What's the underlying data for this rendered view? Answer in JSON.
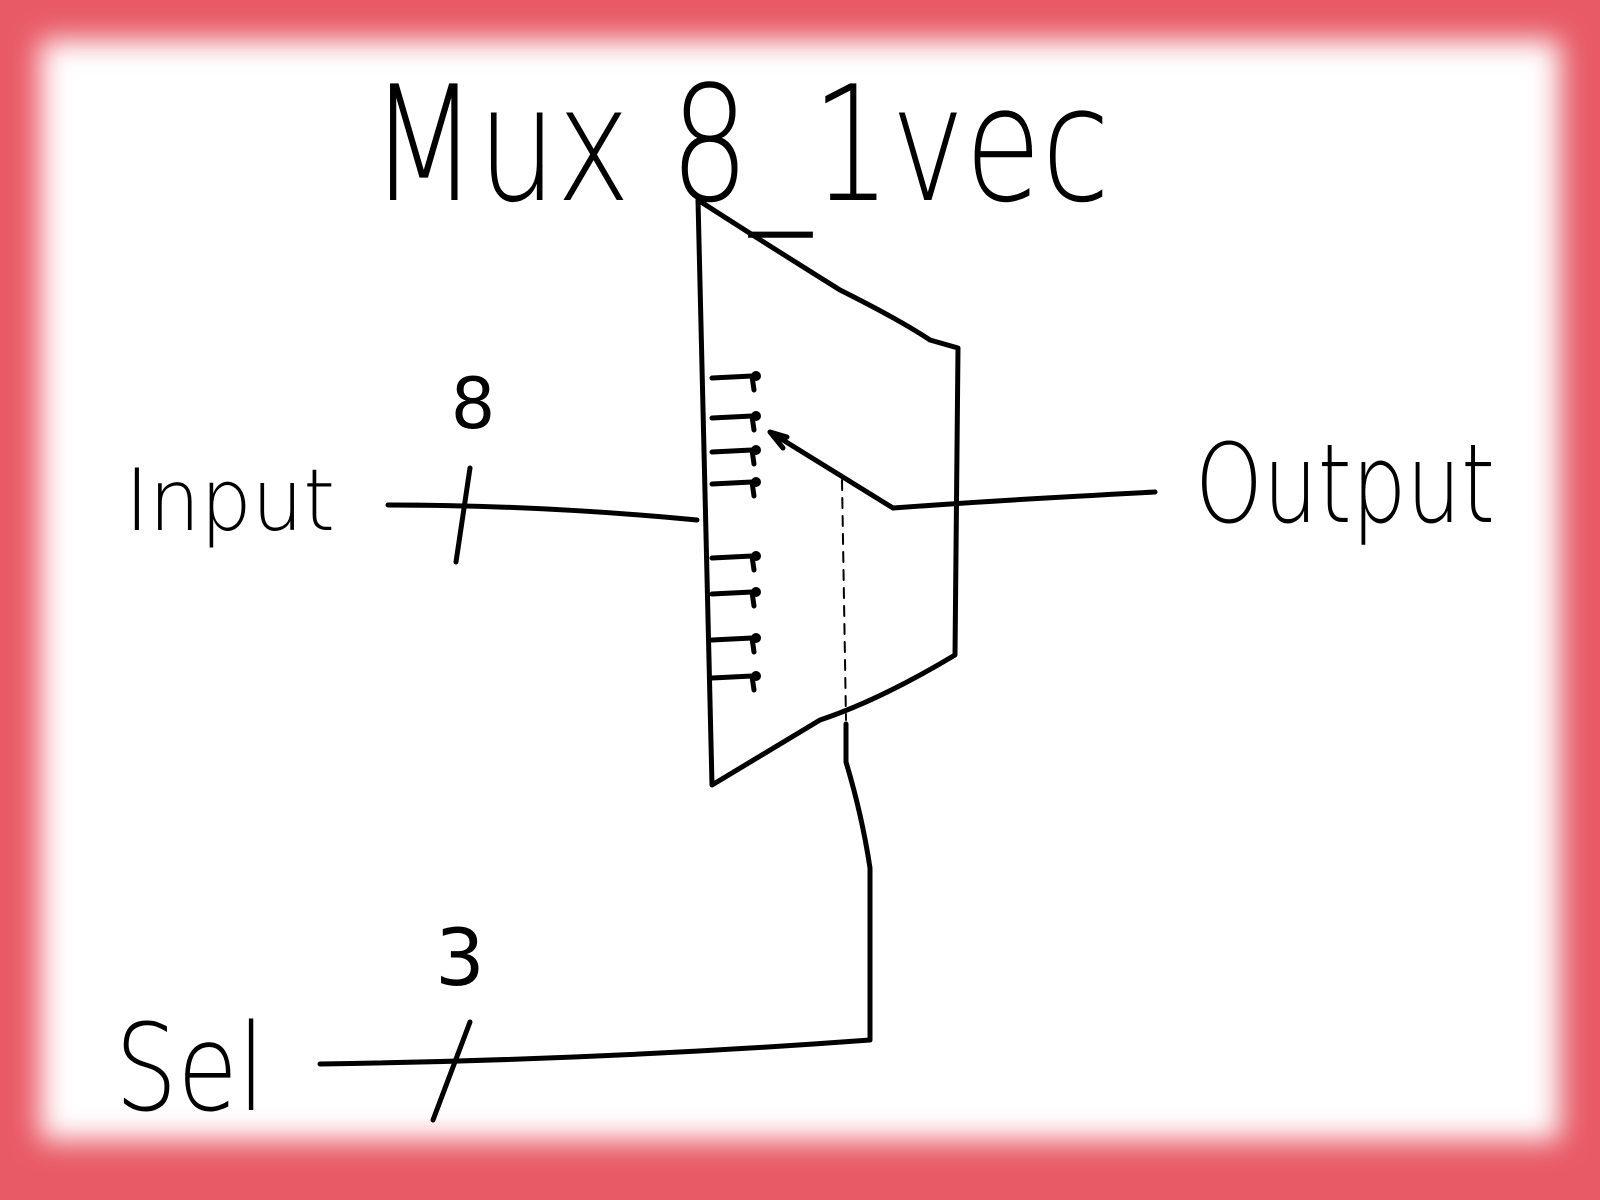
{
  "title": "Mux 8_1vec",
  "input": {
    "label": "Input",
    "width": "8"
  },
  "output": {
    "label": "Output"
  },
  "select": {
    "label": "Sel",
    "width": "3"
  },
  "mux_lines": 8,
  "colors": {
    "ink": "#000000",
    "background": "#ffffff",
    "frame": "#e85a66"
  }
}
